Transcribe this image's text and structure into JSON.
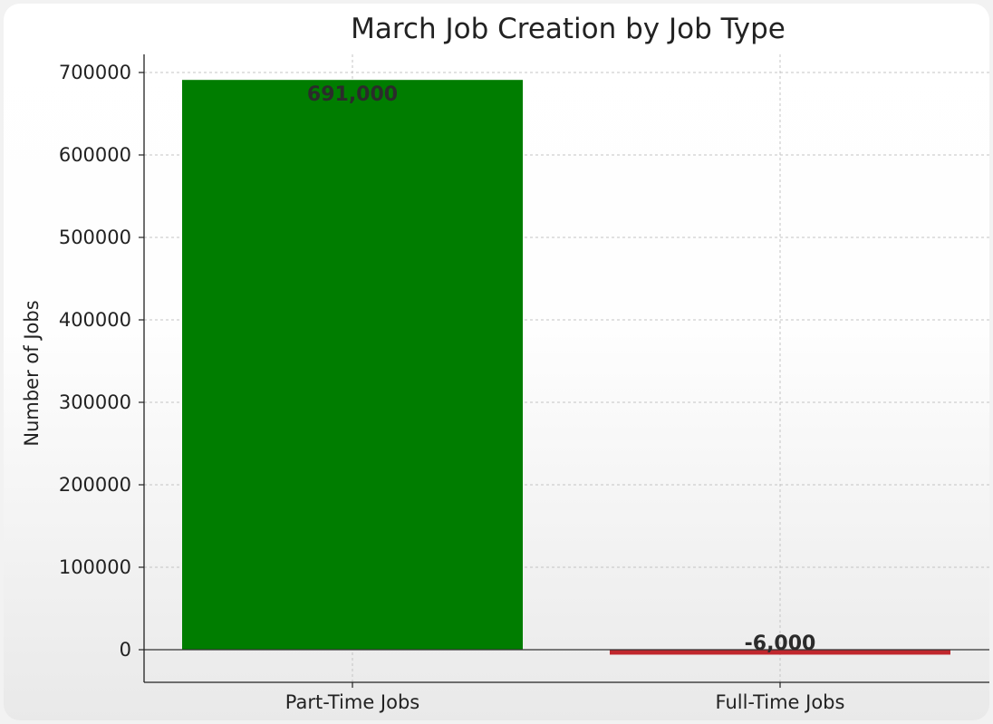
{
  "chart_data": {
    "type": "bar",
    "title": "March Job Creation by Job Type",
    "xlabel": "",
    "ylabel": "Number of Jobs",
    "categories": [
      "Part-Time Jobs",
      "Full-Time Jobs"
    ],
    "values": [
      691000,
      -6000
    ],
    "data_labels": [
      "691,000",
      "-6,000"
    ],
    "colors": [
      "#007d00",
      "#c0272d"
    ],
    "yticks": [
      0,
      100000,
      200000,
      300000,
      400000,
      500000,
      600000,
      700000
    ],
    "ytick_labels": [
      "0",
      "100000",
      "200000",
      "300000",
      "400000",
      "500000",
      "600000",
      "700000"
    ],
    "ylim": [
      -40000,
      727000
    ],
    "grid": true,
    "zero_line": true
  }
}
